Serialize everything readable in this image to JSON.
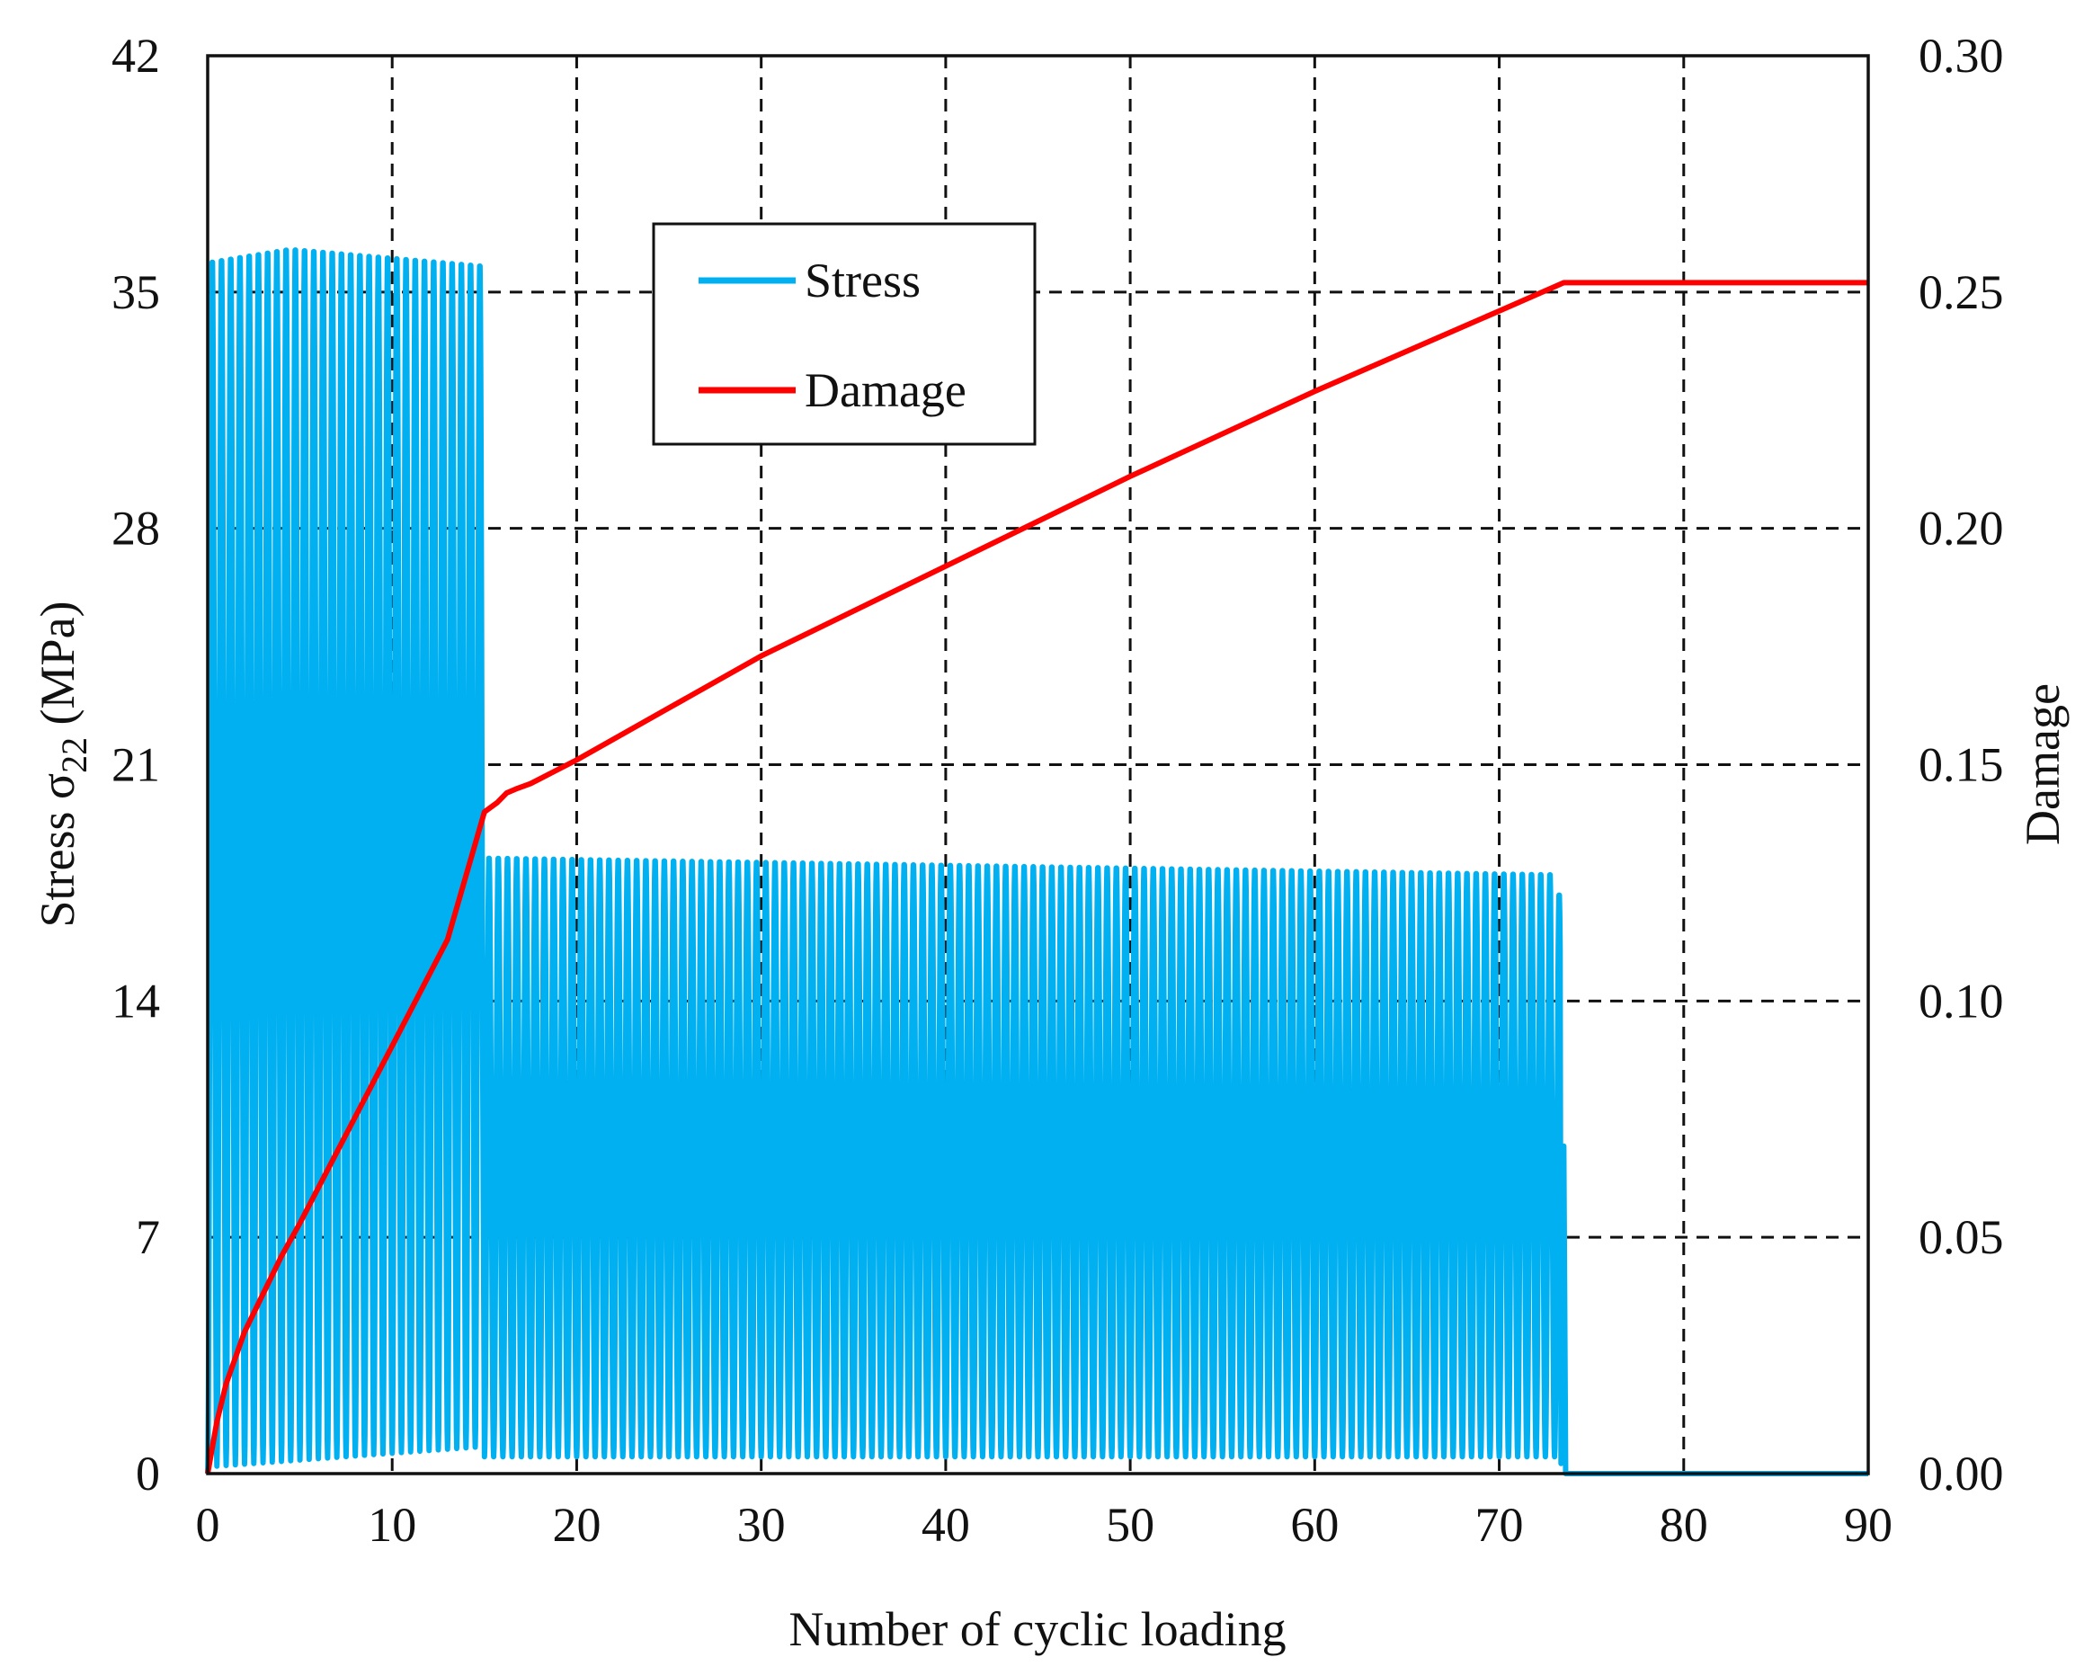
{
  "chart_data": {
    "type": "line",
    "xlabel": "Number of cyclic loading",
    "ylabel": {
      "prefix": "Stress σ",
      "subscript": "22",
      "suffix": " (MPa)"
    },
    "y2label": "Damage",
    "xlim": [
      0,
      90
    ],
    "ylim": [
      0,
      42
    ],
    "y2lim": [
      0,
      0.3
    ],
    "xticks": [
      "0",
      "10",
      "20",
      "30",
      "40",
      "50",
      "60",
      "70",
      "80",
      "90"
    ],
    "yticks": [
      "0",
      "7",
      "14",
      "21",
      "28",
      "35",
      "42"
    ],
    "y2ticks": [
      "0.00",
      "0.05",
      "0.10",
      "0.15",
      "0.20",
      "0.25",
      "0.30"
    ],
    "grid": true,
    "legend_position": "top-center",
    "series": [
      {
        "name": "Stress",
        "axis": "left",
        "color": "#00b0f0",
        "kind": "cyclic",
        "description_values": {
          "cycle_period": 0.5,
          "phase1": {
            "from": 0,
            "to": 14.9,
            "peak_start": 36.0,
            "peak_mid": 36.4,
            "peak_end": 35.9,
            "trough_start": 0.2,
            "trough_end": 0.8
          },
          "phase2": {
            "from": 15.0,
            "to": 73.3,
            "peak_start": 18.3,
            "peak_end": 17.8,
            "last_peak": 17.2,
            "trough": 0.5
          },
          "final_spike": {
            "x": 73.5,
            "y": 9.7
          },
          "after_failure": {
            "from": 73.6,
            "to": 90,
            "y": 0
          }
        }
      },
      {
        "name": "Damage",
        "axis": "right",
        "color": "#ff0000",
        "x": [
          0,
          0.5,
          1,
          2,
          3,
          4,
          5,
          7,
          9,
          11,
          13,
          15,
          15.7,
          16.2,
          16.8,
          17.5,
          18,
          19,
          20,
          25,
          30,
          40,
          50,
          60,
          70,
          73.5,
          74,
          80,
          90
        ],
        "y": [
          0,
          0.011,
          0.019,
          0.03,
          0.038,
          0.046,
          0.053,
          0.068,
          0.083,
          0.098,
          0.113,
          0.14,
          0.142,
          0.144,
          0.145,
          0.146,
          0.147,
          0.149,
          0.151,
          0.162,
          0.173,
          0.192,
          0.211,
          0.229,
          0.246,
          0.252,
          0.252,
          0.252,
          0.252
        ]
      }
    ]
  }
}
